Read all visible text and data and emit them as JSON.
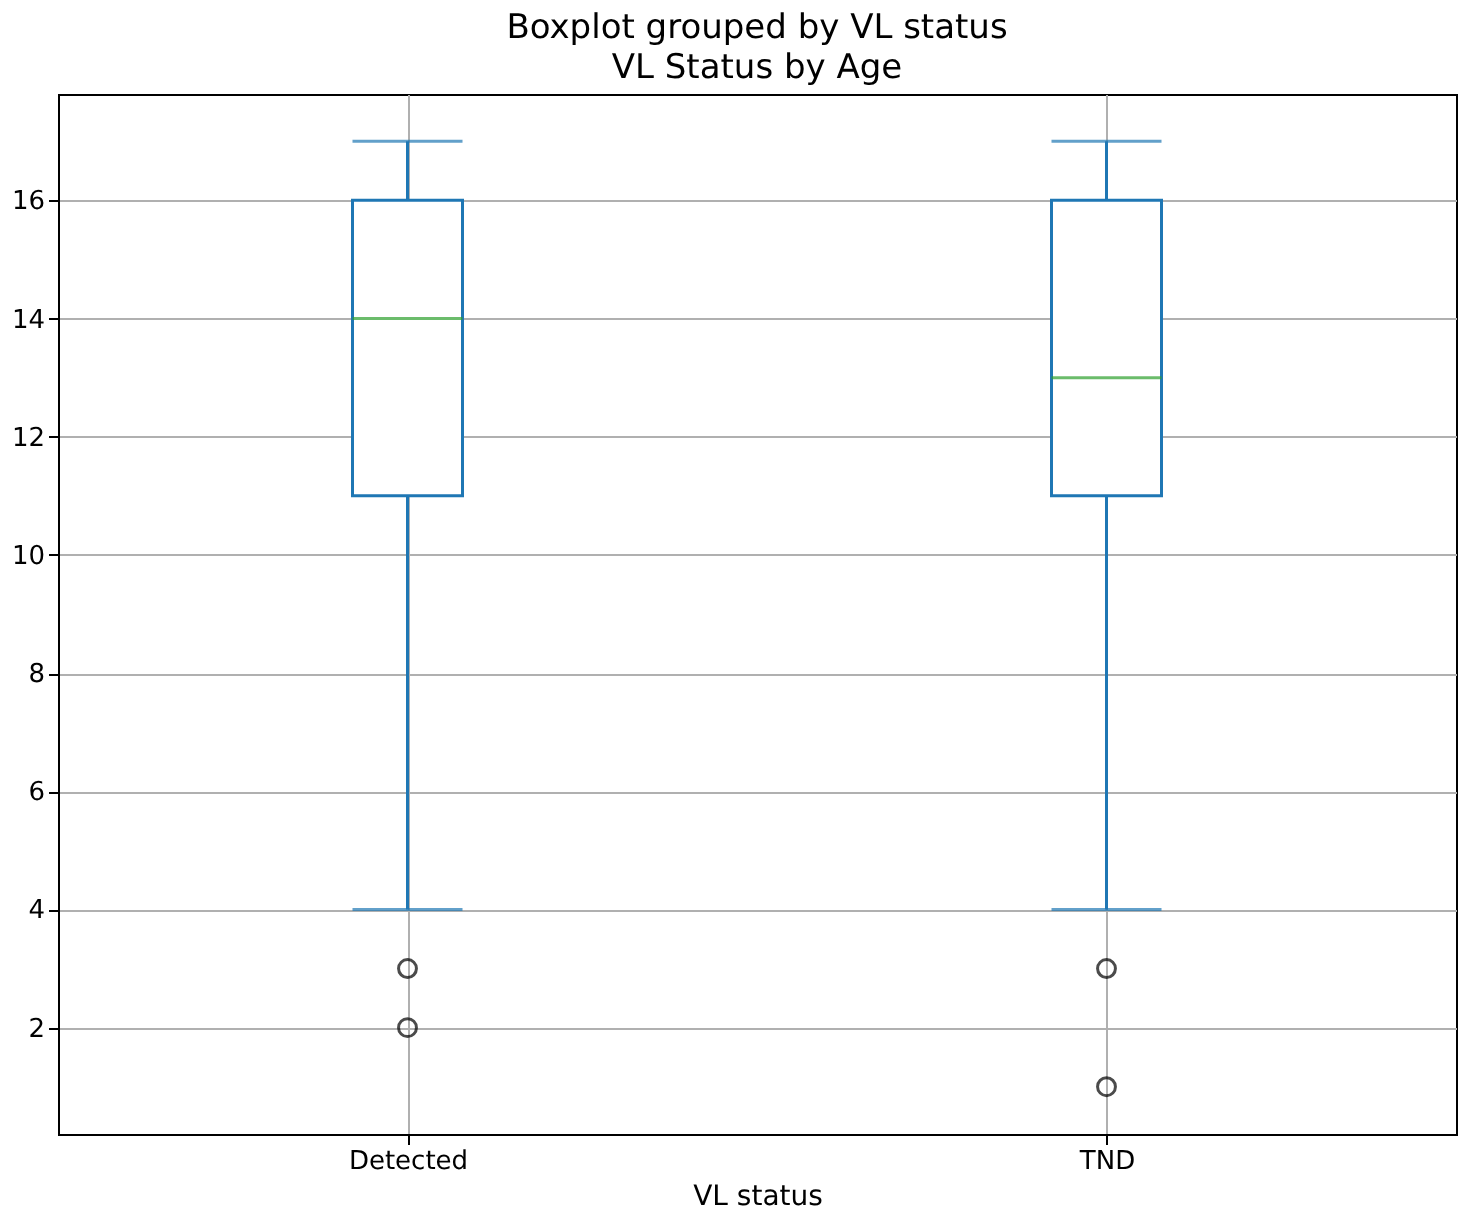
{
  "chart_data": {
    "type": "box",
    "title": "Boxplot grouped by VL status",
    "subtitle": "VL Status by Age",
    "xlabel": "VL status",
    "categories": [
      "Detected",
      "TND"
    ],
    "series": [
      {
        "color": "#1f77b4",
        "boxes": [
          {
            "low": 4,
            "q1": 11,
            "median": 14,
            "q3": 16,
            "high": 17,
            "outliers": [
              3,
              2
            ]
          },
          {
            "low": 4,
            "q1": 11,
            "median": 13,
            "q3": 16,
            "high": 17,
            "outliers": [
              3,
              1
            ]
          }
        ]
      }
    ],
    "ylim": [
      0.2,
      17.8
    ],
    "yticks": [
      2,
      4,
      6,
      8,
      10,
      12,
      14,
      16
    ],
    "grid": true
  }
}
